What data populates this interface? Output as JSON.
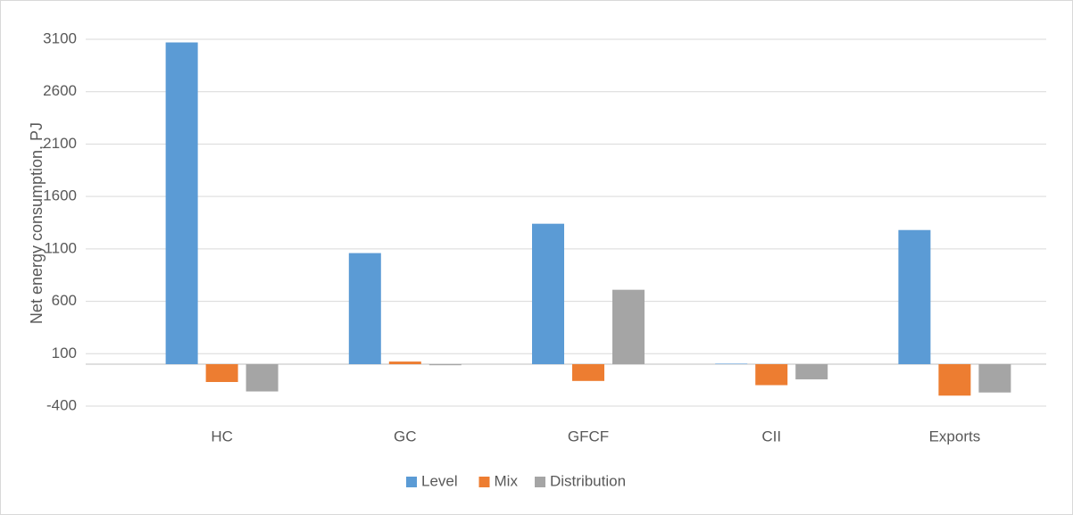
{
  "chart_data": {
    "type": "bar",
    "y_label": "Net energy consumption, PJ",
    "categories": [
      "HC",
      "GC",
      "GFCF",
      "CII",
      "Exports"
    ],
    "series": [
      {
        "name": "Level",
        "color": "#5b9bd5",
        "values": [
          3070,
          1060,
          1340,
          5,
          1280
        ]
      },
      {
        "name": "Mix",
        "color": "#ed7d31",
        "values": [
          -170,
          25,
          -160,
          -200,
          -300
        ]
      },
      {
        "name": "Distribution",
        "color": "#a5a5a5",
        "values": [
          -260,
          -10,
          710,
          -145,
          -270
        ]
      }
    ],
    "ylim": [
      -400,
      3100
    ],
    "yticks": [
      -400,
      100,
      600,
      1100,
      1600,
      2100,
      2600,
      3100
    ],
    "grid": true,
    "legend": "bottom"
  }
}
